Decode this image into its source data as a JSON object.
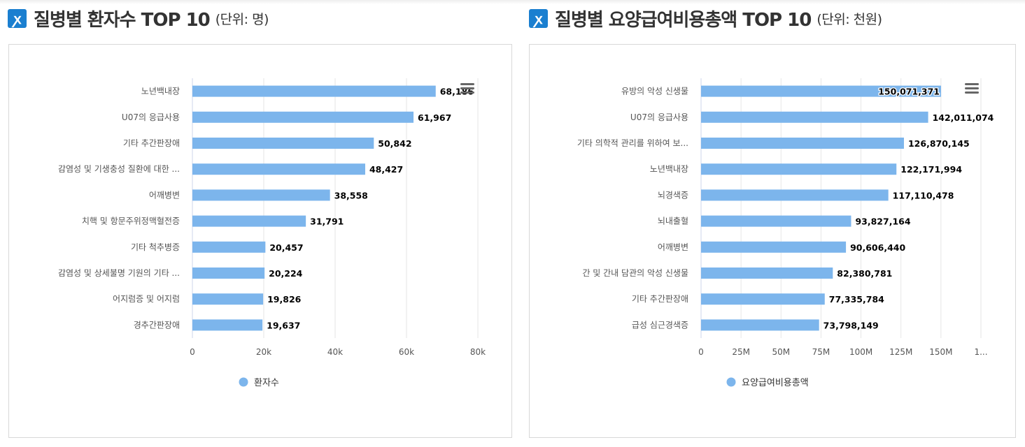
{
  "colors": {
    "bar": "#7cb5ec",
    "brand": "#1a7fd0"
  },
  "charts": [
    {
      "title": "질병별 환자수 TOP 10",
      "unit": "(단위: 명)",
      "menu_icon": "hamburger-menu-icon"
    },
    {
      "title": "질병별 요양급여비용총액 TOP 10",
      "unit": "(단위: 천원)",
      "menu_icon": "hamburger-menu-icon"
    }
  ],
  "chart_data": [
    {
      "type": "bar",
      "orientation": "horizontal",
      "categories": [
        "노년백내장",
        "U07의 응급사용",
        "기타 추간판장애",
        "감염성 및 기생충성 질환에 대한 ...",
        "어깨병변",
        "치핵 및 항문주위정맥혈전증",
        "기타 척추병증",
        "감염성 및 상세불명 기원의 기타 ...",
        "어지럼증 및 어지럼",
        "경추간판장애"
      ],
      "series": [
        {
          "name": "환자수",
          "values": [
            68186,
            61967,
            50842,
            48427,
            38558,
            31791,
            20457,
            20224,
            19826,
            19637
          ]
        }
      ],
      "xlim": [
        0,
        80000
      ],
      "xticks": [
        "0",
        "20k",
        "40k",
        "60k",
        "80k"
      ],
      "grid": true,
      "legend": "bottom"
    },
    {
      "type": "bar",
      "orientation": "horizontal",
      "categories": [
        "유방의 악성 신생물",
        "U07의 응급사용",
        "기타 의학적 관리를 위하여 보...",
        "노년백내장",
        "뇌경색증",
        "뇌내출혈",
        "어깨병변",
        "간 및 간내 담관의 악성 신생물",
        "기타 추간판장애",
        "급성 심근경색증"
      ],
      "series": [
        {
          "name": "요양급여비용총액",
          "values": [
            150071371,
            142011074,
            126870145,
            122171994,
            117110478,
            93827164,
            90606440,
            82380781,
            77335784,
            73798149
          ]
        }
      ],
      "xlim": [
        0,
        175000000
      ],
      "xticks": [
        "0",
        "25M",
        "50M",
        "75M",
        "100M",
        "125M",
        "150M",
        "1..."
      ],
      "grid": true,
      "legend": "bottom"
    }
  ]
}
